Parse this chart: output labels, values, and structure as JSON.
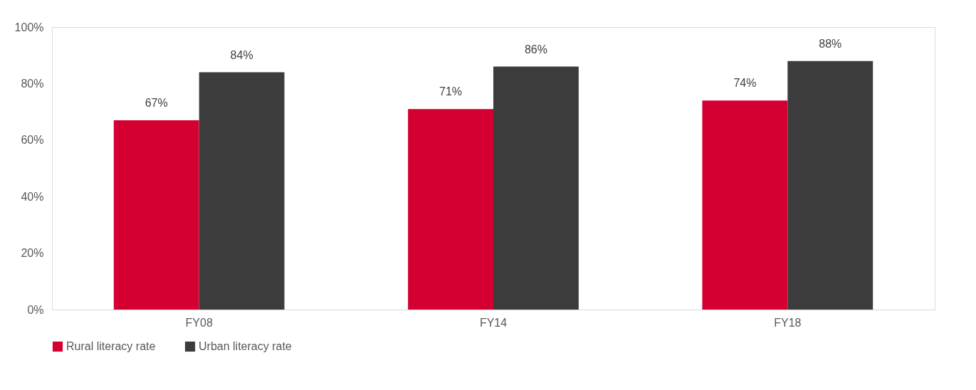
{
  "chart_data": {
    "type": "bar",
    "categories": [
      "FY08",
      "FY14",
      "FY18"
    ],
    "series": [
      {
        "name": "Rural literacy rate",
        "color": "#d50032",
        "values": [
          67,
          71,
          74
        ],
        "value_labels": [
          "67%",
          "71%",
          "74%"
        ]
      },
      {
        "name": "Urban literacy rate",
        "color": "#3c3c3c",
        "values": [
          84,
          86,
          88
        ],
        "value_labels": [
          "84%",
          "86%",
          "88%"
        ]
      }
    ],
    "ylim": [
      0,
      100
    ],
    "yticks": [
      {
        "value": 0,
        "label": "0%"
      },
      {
        "value": 20,
        "label": "20%"
      },
      {
        "value": 40,
        "label": "40%"
      },
      {
        "value": 60,
        "label": "60%"
      },
      {
        "value": 80,
        "label": "80%"
      },
      {
        "value": 100,
        "label": "100%"
      }
    ],
    "grid": false,
    "legend": "bottom"
  }
}
